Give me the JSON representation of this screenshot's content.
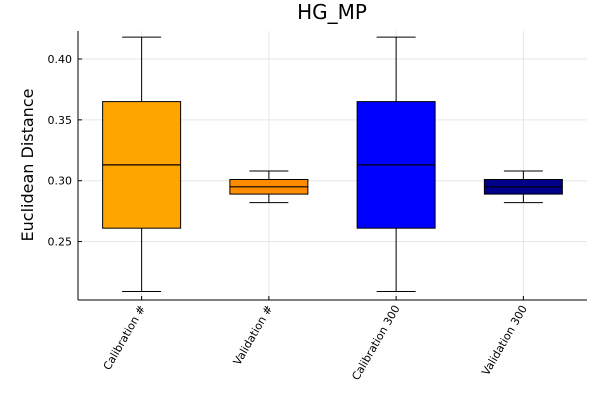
{
  "chart_data": {
    "type": "box",
    "title": "HG_MP",
    "xlabel": "",
    "ylabel": "Euclidean Distance",
    "ylim": [
      0.202,
      0.423
    ],
    "yticks": [
      0.25,
      0.3,
      0.35,
      0.4
    ],
    "ytick_labels": [
      "0.25",
      "0.30",
      "0.35",
      "0.40"
    ],
    "grid": true,
    "categories": [
      "Calibration #",
      "Validation #",
      "Calibration 300",
      "Validation 300"
    ],
    "boxes": [
      {
        "label": "Calibration #",
        "min": 0.209,
        "q1": 0.261,
        "median": 0.313,
        "q3": 0.365,
        "max": 0.418,
        "color": "#FFA500"
      },
      {
        "label": "Validation #",
        "min": 0.282,
        "q1": 0.289,
        "median": 0.295,
        "q3": 0.301,
        "max": 0.308,
        "color": "#FF8C00"
      },
      {
        "label": "Calibration 300",
        "min": 0.209,
        "q1": 0.261,
        "median": 0.313,
        "q3": 0.365,
        "max": 0.418,
        "color": "#0000FF"
      },
      {
        "label": "Validation 300",
        "min": 0.282,
        "q1": 0.289,
        "median": 0.295,
        "q3": 0.301,
        "max": 0.308,
        "color": "#00008B"
      }
    ]
  }
}
